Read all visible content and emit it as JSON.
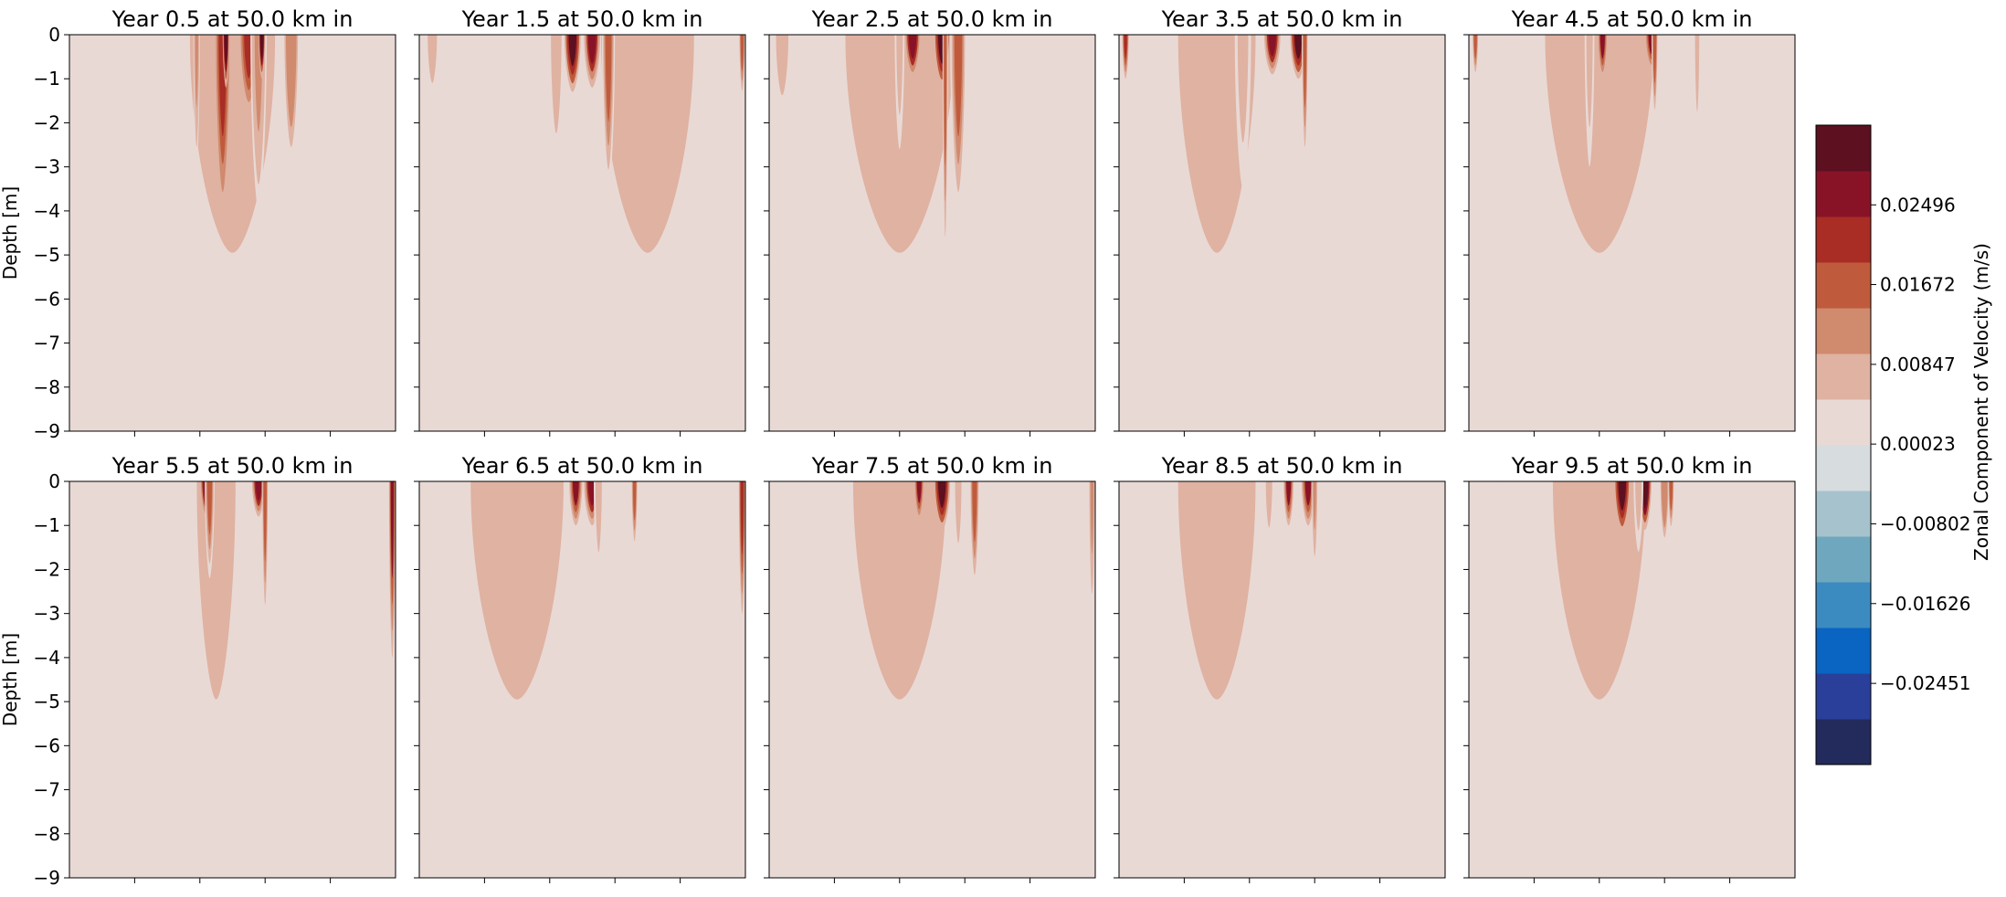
{
  "chart_data": {
    "type": "contour",
    "layout": {
      "rows": 2,
      "cols": 5
    },
    "colorbar": {
      "label": "Zonal Component of Velocity (m/s)",
      "levels": 14,
      "range": [
        -0.0329,
        0.0332
      ],
      "tick_values": [
        -0.02451,
        -0.01626,
        -0.00802,
        0.00023,
        0.00847,
        0.01672,
        0.02496
      ],
      "tick_labels": [
        "−0.02451",
        "−0.01626",
        "−0.00802",
        "0.00023",
        "0.00847",
        "0.01672",
        "0.02496"
      ],
      "colors": [
        "#232b5c",
        "#2a3f9a",
        "#0a64c2",
        "#3b8bc0",
        "#6fa8be",
        "#a6c2cd",
        "#d7dcdf",
        "#e9d9d5",
        "#dfb2a2",
        "#d08a6e",
        "#bf5b3c",
        "#a92c25",
        "#881327",
        "#5c1020"
      ]
    },
    "y_axis": {
      "label": "Depth [m]",
      "range": [
        -9,
        0
      ],
      "tick_values": [
        0,
        -1,
        -2,
        -3,
        -4,
        -5,
        -6,
        -7,
        -8,
        -9
      ],
      "tick_labels": [
        "0",
        "−1",
        "−2",
        "−3",
        "−4",
        "−5",
        "−6",
        "−7",
        "−8",
        "−9"
      ]
    },
    "panels": [
      {
        "title": "Year 0.5 at 50.0 km in",
        "features": [
          {
            "x": 0.47,
            "w": 0.05,
            "d": 4.2,
            "v": 0.8
          },
          {
            "x": 0.48,
            "w": 0.02,
            "d": 1.2,
            "v": 0.995
          },
          {
            "x": 0.55,
            "w": 0.06,
            "d": 1.8,
            "v": 0.85
          },
          {
            "x": 0.58,
            "w": 0.05,
            "d": 4.0,
            "v": 0.66
          },
          {
            "x": 0.59,
            "w": 0.02,
            "d": 1.0,
            "v": 0.995
          },
          {
            "x": 0.68,
            "w": 0.05,
            "d": 3.0,
            "v": 0.7
          },
          {
            "x": 0.39,
            "w": 0.02,
            "d": 3.0,
            "v": 0.66
          },
          {
            "x": 0.5,
            "w": 0.55,
            "d": 9,
            "v": 0.58,
            "wide": 1
          }
        ]
      },
      {
        "title": "Year 1.5 at 50.0 km in",
        "features": [
          {
            "x": 0.47,
            "w": 0.05,
            "d": 1.3,
            "v": 0.94
          },
          {
            "x": 0.53,
            "w": 0.05,
            "d": 1.2,
            "v": 0.91
          },
          {
            "x": 0.42,
            "w": 0.05,
            "d": 3.2,
            "v": 0.64
          },
          {
            "x": 0.58,
            "w": 0.04,
            "d": 3.6,
            "v": 0.72
          },
          {
            "x": 0.04,
            "w": 0.06,
            "d": 2.0,
            "v": 0.58
          },
          {
            "x": 0.99,
            "w": 0.02,
            "d": 1.5,
            "v": 0.76
          },
          {
            "x": 0.7,
            "w": 0.6,
            "d": 9,
            "v": 0.58,
            "wide": 1
          }
        ]
      },
      {
        "title": "Year 2.5 at 50.0 km in",
        "features": [
          {
            "x": 0.44,
            "w": 0.05,
            "d": 1.0,
            "v": 0.92
          },
          {
            "x": 0.53,
            "w": 0.05,
            "d": 1.2,
            "v": 0.93
          },
          {
            "x": 0.4,
            "w": 0.03,
            "d": 2.6,
            "v": 0.64
          },
          {
            "x": 0.58,
            "w": 0.05,
            "d": 4.2,
            "v": 0.72
          },
          {
            "x": 0.54,
            "w": 0.01,
            "d": 5.4,
            "v": 0.75
          },
          {
            "x": 0.04,
            "w": 0.08,
            "d": 2.5,
            "v": 0.58
          },
          {
            "x": 0.4,
            "w": 0.7,
            "d": 9,
            "v": 0.58,
            "wide": 1
          }
        ]
      },
      {
        "title": "Year 3.5 at 50.0 km in",
        "features": [
          {
            "x": 0.47,
            "w": 0.05,
            "d": 0.9,
            "v": 0.9
          },
          {
            "x": 0.55,
            "w": 0.05,
            "d": 1.0,
            "v": 0.95
          },
          {
            "x": 0.38,
            "w": 0.05,
            "d": 3.5,
            "v": 0.64
          },
          {
            "x": 0.57,
            "w": 0.02,
            "d": 3.0,
            "v": 0.72
          },
          {
            "x": 0.02,
            "w": 0.02,
            "d": 1.0,
            "v": 0.8
          },
          {
            "x": 0.3,
            "w": 0.5,
            "d": 9,
            "v": 0.58,
            "wide": 1
          }
        ]
      },
      {
        "title": "Year 4.5 at 50.0 km in",
        "features": [
          {
            "x": 0.41,
            "w": 0.03,
            "d": 1.0,
            "v": 0.86
          },
          {
            "x": 0.56,
            "w": 0.04,
            "d": 0.8,
            "v": 0.88
          },
          {
            "x": 0.37,
            "w": 0.03,
            "d": 3.0,
            "v": 0.64
          },
          {
            "x": 0.57,
            "w": 0.02,
            "d": 2.0,
            "v": 0.72
          },
          {
            "x": 0.7,
            "w": 0.02,
            "d": 2.5,
            "v": 0.63
          },
          {
            "x": 0.02,
            "w": 0.02,
            "d": 1.0,
            "v": 0.72
          },
          {
            "x": 0.4,
            "w": 0.7,
            "d": 9,
            "v": 0.58,
            "wide": 1
          }
        ]
      },
      {
        "title": "Year 5.5 at 50.0 km in",
        "features": [
          {
            "x": 0.42,
            "w": 0.04,
            "d": 0.9,
            "v": 0.9
          },
          {
            "x": 0.58,
            "w": 0.04,
            "d": 0.8,
            "v": 0.9
          },
          {
            "x": 0.43,
            "w": 0.03,
            "d": 2.2,
            "v": 0.72
          },
          {
            "x": 0.6,
            "w": 0.02,
            "d": 3.3,
            "v": 0.74
          },
          {
            "x": 0.99,
            "w": 0.02,
            "d": 4.0,
            "v": 0.88
          },
          {
            "x": 0.45,
            "w": 0.25,
            "d": 9,
            "v": 0.58,
            "wide": 1
          }
        ]
      },
      {
        "title": "Year 6.5 at 50.0 km in",
        "features": [
          {
            "x": 0.48,
            "w": 0.04,
            "d": 1.0,
            "v": 0.88
          },
          {
            "x": 0.53,
            "w": 0.05,
            "d": 1.0,
            "v": 0.9
          },
          {
            "x": 0.55,
            "w": 0.03,
            "d": 2.3,
            "v": 0.64
          },
          {
            "x": 0.66,
            "w": 0.02,
            "d": 1.6,
            "v": 0.74
          },
          {
            "x": 0.99,
            "w": 0.02,
            "d": 3.0,
            "v": 0.85
          },
          {
            "x": 0.3,
            "w": 0.6,
            "d": 9,
            "v": 0.58,
            "wide": 1
          }
        ]
      },
      {
        "title": "Year 7.5 at 50.0 km in",
        "features": [
          {
            "x": 0.46,
            "w": 0.03,
            "d": 0.9,
            "v": 0.88
          },
          {
            "x": 0.53,
            "w": 0.05,
            "d": 1.1,
            "v": 0.97
          },
          {
            "x": 0.58,
            "w": 0.03,
            "d": 2.0,
            "v": 0.64
          },
          {
            "x": 0.63,
            "w": 0.03,
            "d": 2.5,
            "v": 0.74
          },
          {
            "x": 0.99,
            "w": 0.02,
            "d": 3.0,
            "v": 0.66
          },
          {
            "x": 0.4,
            "w": 0.6,
            "d": 9,
            "v": 0.58,
            "wide": 1
          }
        ]
      },
      {
        "title": "Year 8.5 at 50.0 km in",
        "features": [
          {
            "x": 0.52,
            "w": 0.03,
            "d": 1.0,
            "v": 0.88
          },
          {
            "x": 0.58,
            "w": 0.04,
            "d": 1.0,
            "v": 0.86
          },
          {
            "x": 0.6,
            "w": 0.02,
            "d": 2.0,
            "v": 0.66
          },
          {
            "x": 0.46,
            "w": 0.03,
            "d": 1.5,
            "v": 0.64
          },
          {
            "x": 0.3,
            "w": 0.5,
            "d": 9,
            "v": 0.58,
            "wide": 1
          }
        ]
      },
      {
        "title": "Year 9.5 at 50.0 km in",
        "features": [
          {
            "x": 0.47,
            "w": 0.05,
            "d": 1.2,
            "v": 0.97
          },
          {
            "x": 0.54,
            "w": 0.04,
            "d": 1.1,
            "v": 0.995
          },
          {
            "x": 0.52,
            "w": 0.03,
            "d": 1.6,
            "v": 0.64
          },
          {
            "x": 0.6,
            "w": 0.03,
            "d": 1.5,
            "v": 0.7
          },
          {
            "x": 0.62,
            "w": 0.02,
            "d": 1.2,
            "v": 0.74
          },
          {
            "x": 0.4,
            "w": 0.6,
            "d": 9,
            "v": 0.58,
            "wide": 1
          }
        ]
      }
    ]
  }
}
